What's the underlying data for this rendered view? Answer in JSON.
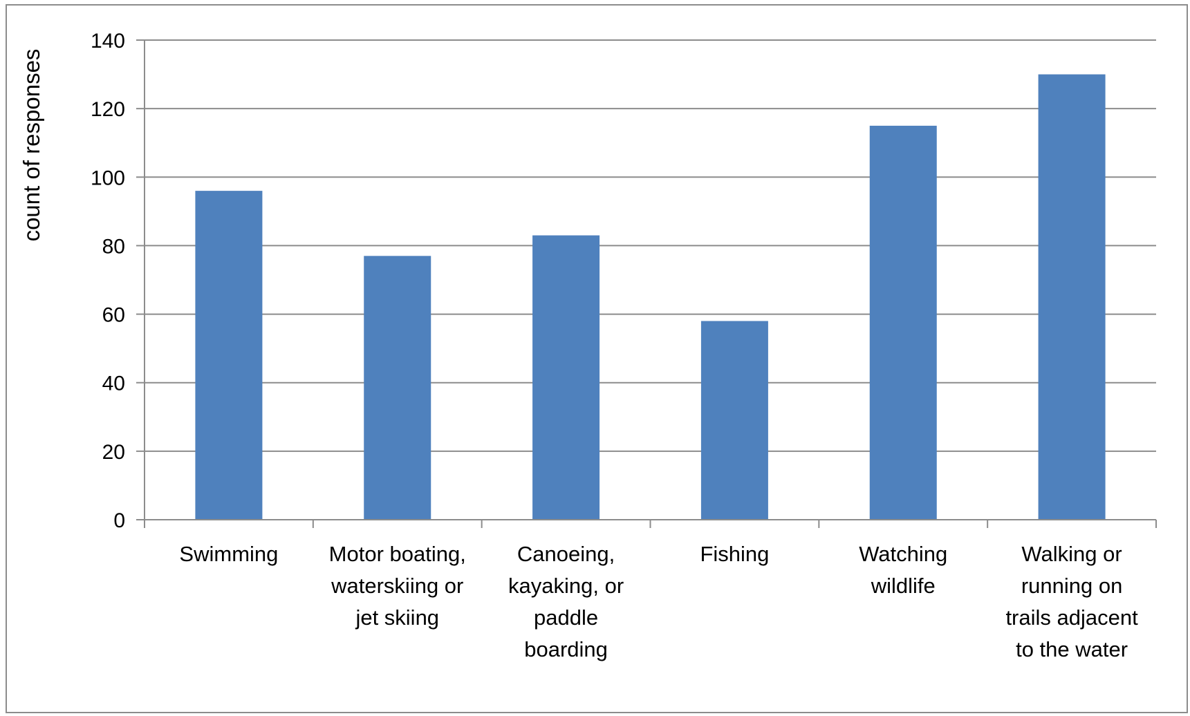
{
  "chart_data": {
    "type": "bar",
    "title": "",
    "xlabel": "",
    "ylabel": "count of responses",
    "categories": [
      "Swimming",
      "Motor boating, waterskiing or jet skiing",
      "Canoeing, kayaking, or paddle boarding",
      "Fishing",
      "Watching wildlife",
      "Walking or running on trails adjacent to the water"
    ],
    "category_lines": [
      [
        "Swimming"
      ],
      [
        "Motor boating,",
        "waterskiing or",
        "jet skiing"
      ],
      [
        "Canoeing,",
        "kayaking, or",
        "paddle",
        "boarding"
      ],
      [
        "Fishing"
      ],
      [
        "Watching",
        "wildlife"
      ],
      [
        "Walking or",
        "running on",
        "trails adjacent",
        "to the water"
      ]
    ],
    "values": [
      96,
      77,
      83,
      58,
      115,
      130
    ],
    "ylim": [
      0,
      140
    ],
    "yticks": [
      0,
      20,
      40,
      60,
      80,
      100,
      120,
      140
    ],
    "grid": true,
    "legend": "none",
    "colors": {
      "bar": "#4f81bd",
      "grid": "#8c8c8c",
      "axis": "#8c8c8c",
      "border": "#8c8c8c"
    }
  }
}
